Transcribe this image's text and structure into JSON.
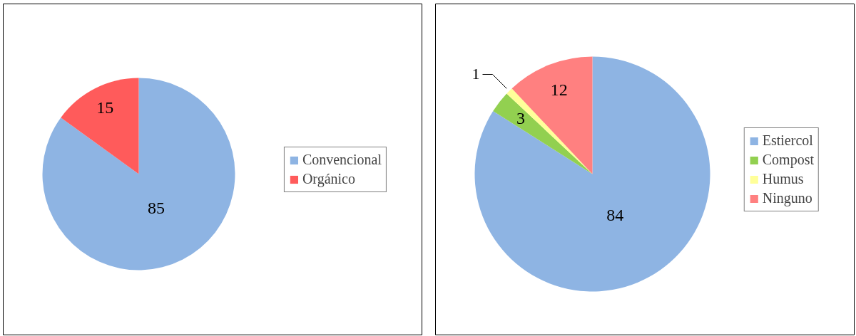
{
  "chart_data": [
    {
      "type": "pie",
      "categories": [
        "Convencional",
        "Orgánico"
      ],
      "values": [
        85,
        15
      ],
      "colors": [
        "#8eb4e3",
        "#ff5b5b"
      ],
      "data_labels": true,
      "legend": "right"
    },
    {
      "type": "pie",
      "categories": [
        "Estiercol",
        "Compost",
        "Humus",
        "Ninguno"
      ],
      "values": [
        84,
        3,
        1,
        12
      ],
      "colors": [
        "#8eb4e3",
        "#92d050",
        "#ffff99",
        "#ff8080"
      ],
      "data_labels": true,
      "legend": "right"
    }
  ]
}
